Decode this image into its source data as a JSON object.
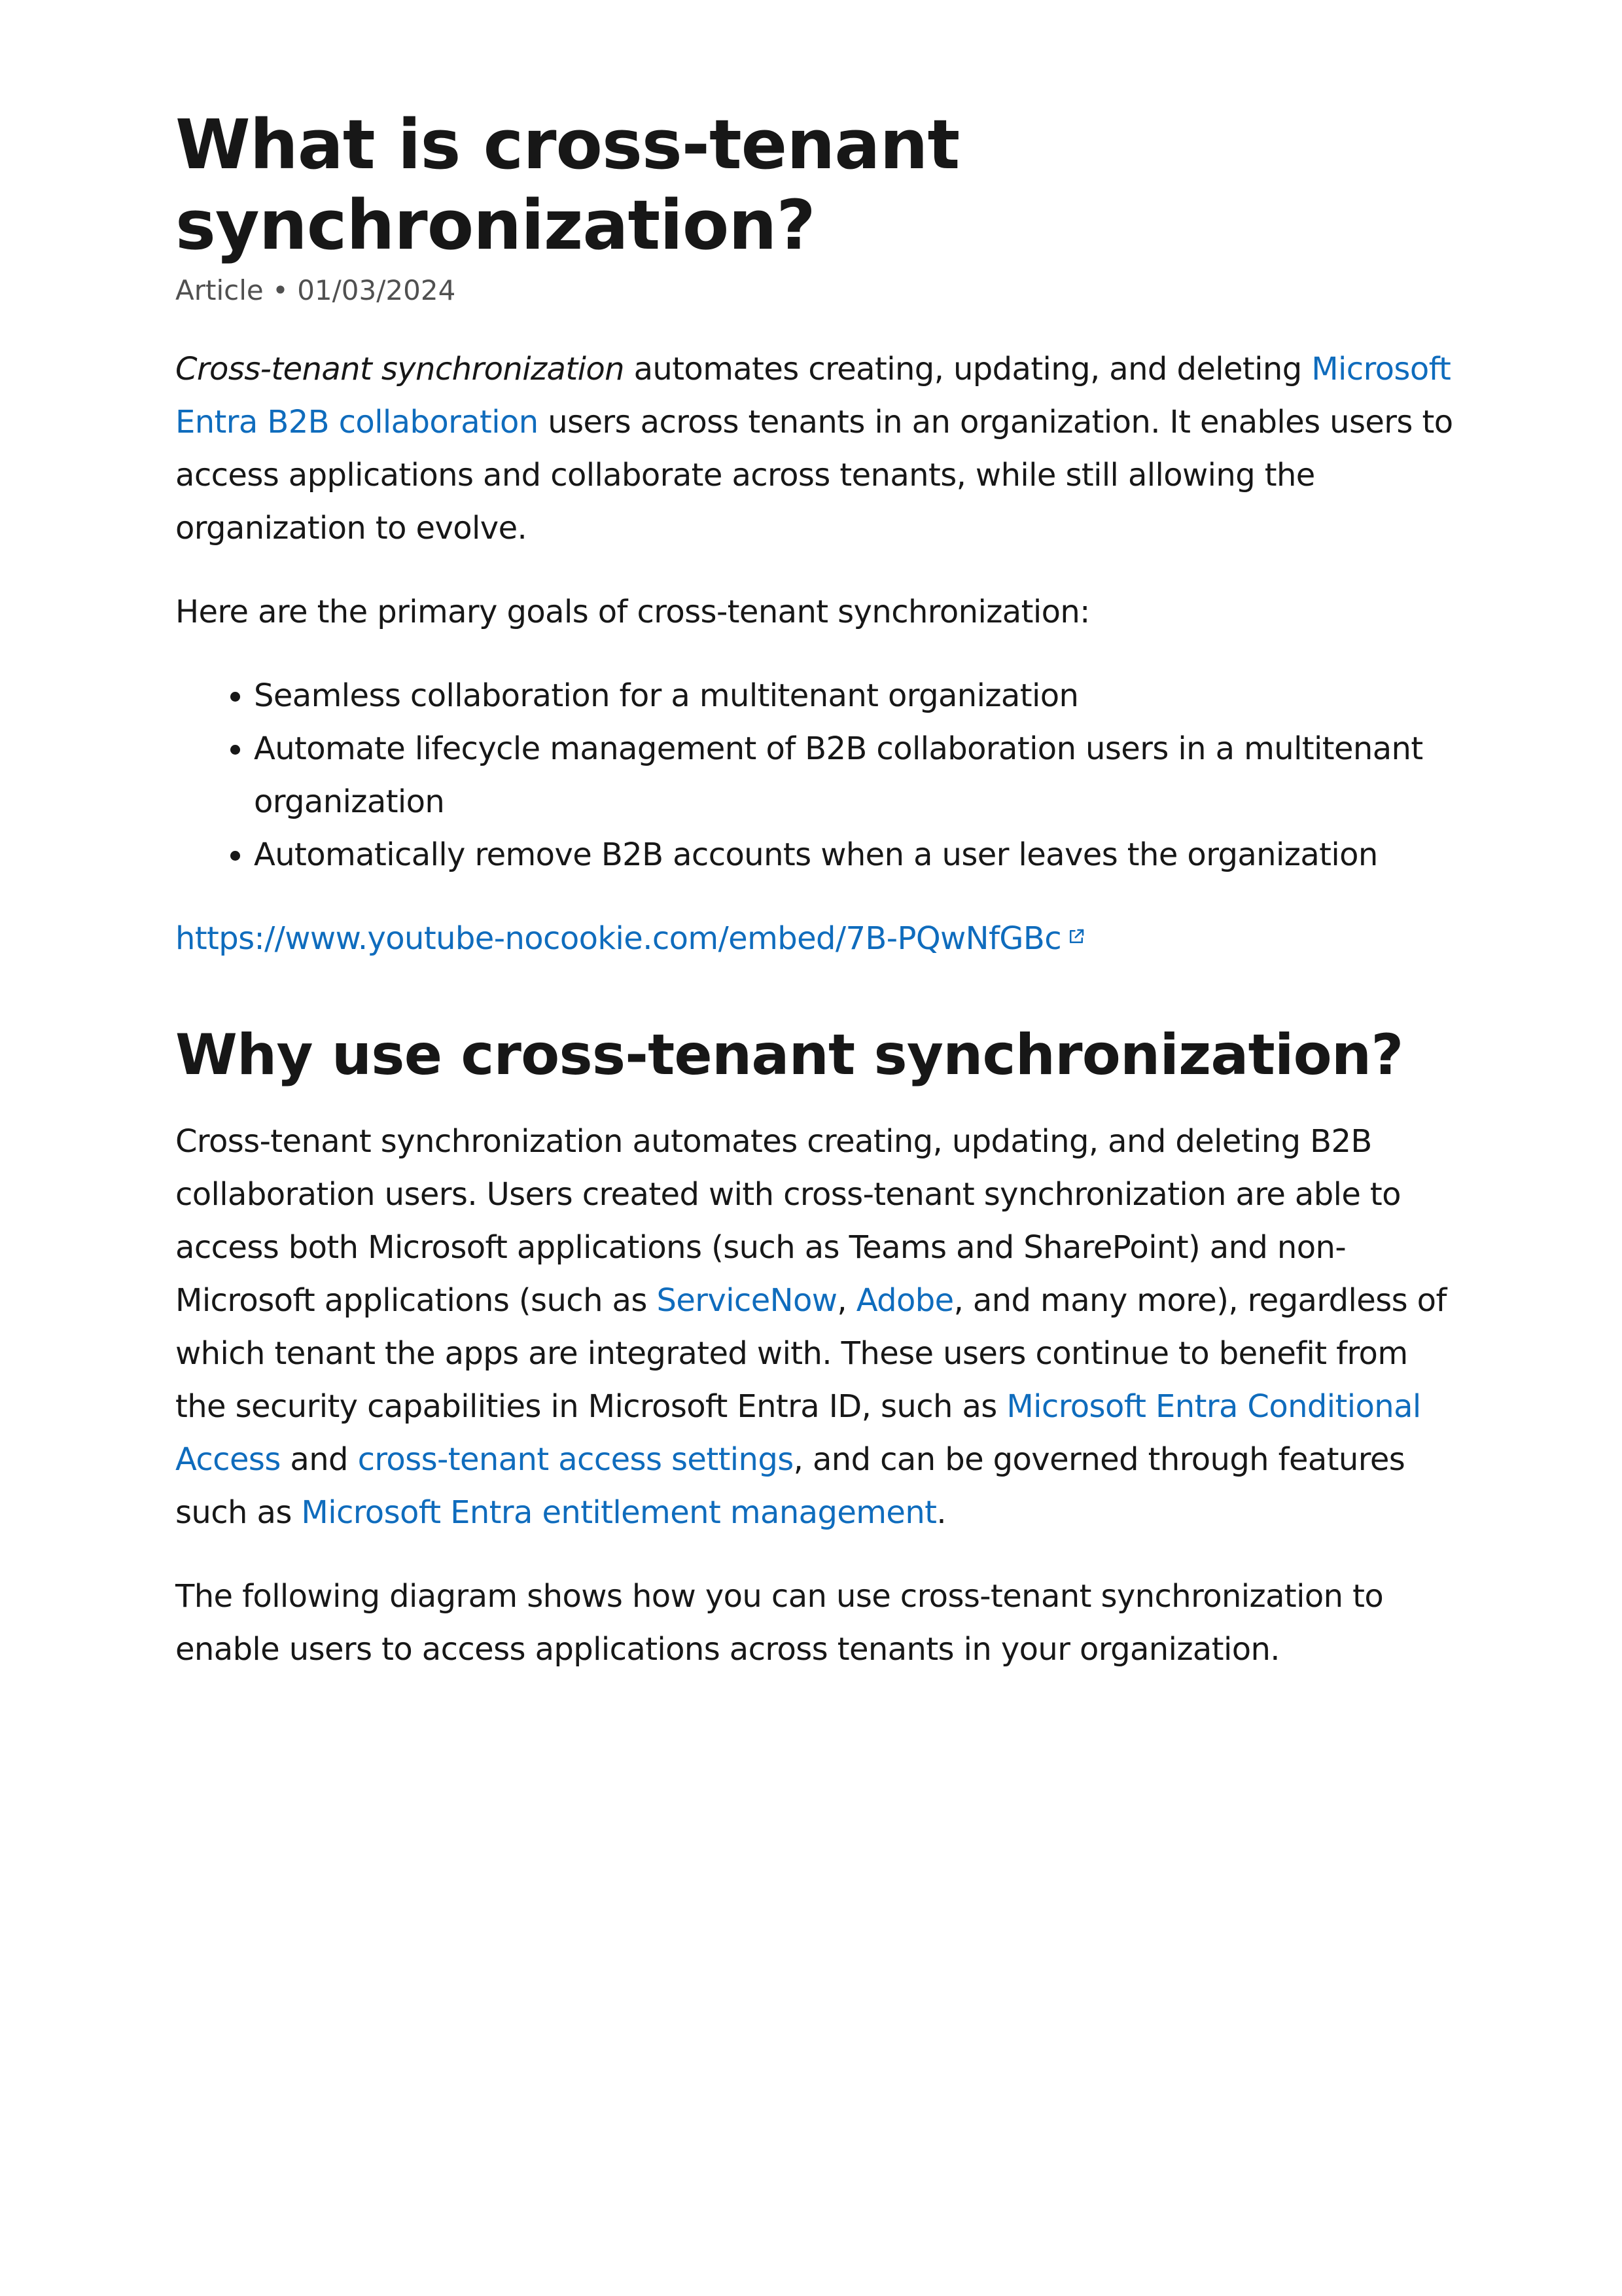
{
  "article": {
    "title": "What is cross-tenant synchronization?",
    "meta": "Article • 01/03/2024",
    "intro": {
      "term": "Cross-tenant synchronization",
      "text1": " automates creating, updating, and deleting ",
      "link1": "Microsoft Entra B2B collaboration",
      "text2": " users across tenants in an organization. It enables users to access applications and collaborate across tenants, while still allowing the organization to evolve."
    },
    "goals_lead": "Here are the primary goals of cross-tenant synchronization:",
    "goals": [
      "Seamless collaboration for a multitenant organization",
      "Automate lifecycle management of B2B collaboration users in a multitenant organization",
      "Automatically remove B2B accounts when a user leaves the organization"
    ],
    "video_link": "https://www.youtube-nocookie.com/embed/7B-PQwNfGBc",
    "video_icon": "external-link-icon"
  },
  "why": {
    "heading": "Why use cross-tenant synchronization?",
    "p1": {
      "text1": "Cross-tenant synchronization automates creating, updating, and deleting B2B collaboration users. Users created with cross-tenant synchronization are able to access both Microsoft applications (such as Teams and SharePoint) and non-Microsoft applications (such as ",
      "link_servicenow": "ServiceNow",
      "sep": ", ",
      "link_adobe": "Adobe",
      "text2": ", and many more), regardless of which tenant the apps are integrated with. These users continue to benefit from the security capabilities in Microsoft Entra ID, such as ",
      "link_ca": "Microsoft Entra Conditional Access",
      "and": " and ",
      "link_cta": "cross-tenant access settings",
      "text3": ", and can be governed through features such as ",
      "link_em": "Microsoft Entra entitlement management",
      "end": "."
    },
    "p2": "The following diagram shows how you can use cross-tenant synchronization to enable users to access applications across tenants in your organization."
  },
  "colors": {
    "text": "#171717",
    "muted": "#505050",
    "link": "#0f6cbd"
  }
}
